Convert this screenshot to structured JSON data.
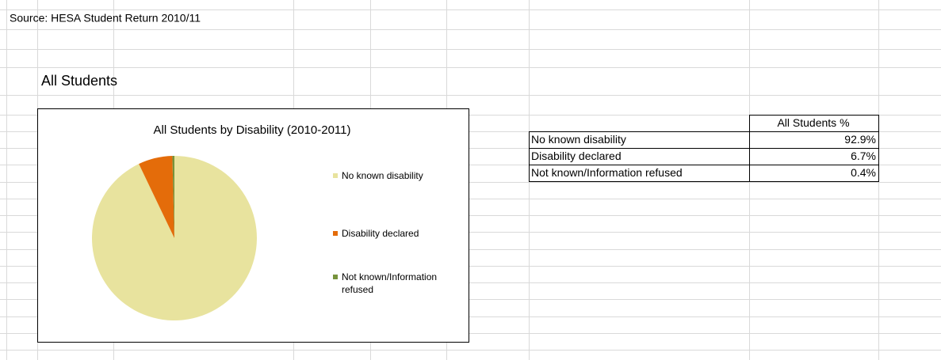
{
  "source": "Source: HESA Student Return 2010/11",
  "heading": "All Students",
  "chart_data": {
    "type": "pie",
    "title": "All Students by Disability (2010-2011)",
    "categories": [
      "No known disability",
      "Disability declared",
      "Not known/Information refused"
    ],
    "values": [
      92.9,
      6.7,
      0.4
    ],
    "colors": [
      "#e8e39e",
      "#e46c0a",
      "#77933c"
    ],
    "legend": "right"
  },
  "table": {
    "header": "All Students %",
    "rows": [
      [
        "No known disability",
        "92.9%"
      ],
      [
        "Disability declared",
        "6.7%"
      ],
      [
        "Not known/Information refused",
        "0.4%"
      ]
    ]
  }
}
